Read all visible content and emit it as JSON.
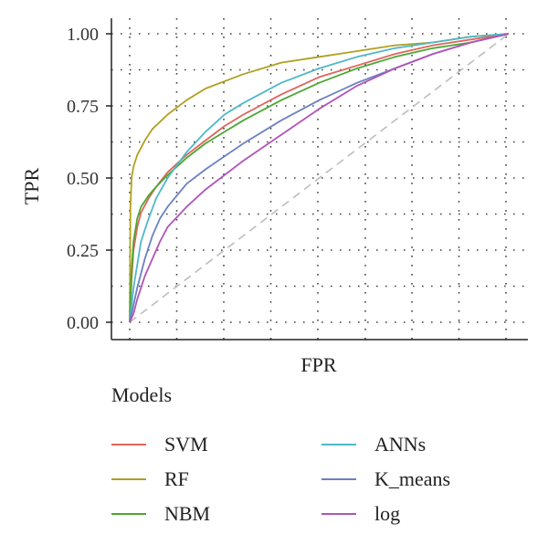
{
  "chart_data": {
    "type": "line",
    "xlabel": "FPR",
    "ylabel": "TPR",
    "xlim": [
      0,
      1
    ],
    "ylim": [
      0,
      1
    ],
    "y_ticks": [
      "0.00",
      "0.25",
      "0.50",
      "0.75",
      "1.00"
    ],
    "x_ticks": [],
    "grid": "dotted",
    "diagonal_reference": true,
    "legend": {
      "title": "Models",
      "position": "bottom"
    },
    "series": [
      {
        "name": "SVM",
        "color": "#e0645c",
        "x": [
          0,
          0.005,
          0.01,
          0.02,
          0.03,
          0.05,
          0.07,
          0.1,
          0.15,
          0.2,
          0.25,
          0.3,
          0.4,
          0.5,
          0.6,
          0.7,
          0.8,
          0.9,
          1.0
        ],
        "y": [
          0,
          0.15,
          0.25,
          0.33,
          0.38,
          0.43,
          0.47,
          0.52,
          0.58,
          0.63,
          0.68,
          0.72,
          0.79,
          0.85,
          0.89,
          0.93,
          0.96,
          0.98,
          1.0
        ]
      },
      {
        "name": "RF",
        "color": "#b0a020",
        "x": [
          0,
          0.002,
          0.005,
          0.01,
          0.02,
          0.04,
          0.06,
          0.1,
          0.15,
          0.2,
          0.3,
          0.4,
          0.5,
          0.6,
          0.7,
          0.8,
          0.9,
          1.0
        ],
        "y": [
          0,
          0.4,
          0.5,
          0.54,
          0.58,
          0.63,
          0.67,
          0.72,
          0.77,
          0.81,
          0.86,
          0.9,
          0.92,
          0.94,
          0.96,
          0.97,
          0.99,
          1.0
        ]
      },
      {
        "name": "NBM",
        "color": "#4aa832",
        "x": [
          0,
          0.005,
          0.01,
          0.02,
          0.03,
          0.05,
          0.07,
          0.1,
          0.15,
          0.2,
          0.25,
          0.3,
          0.4,
          0.5,
          0.6,
          0.7,
          0.8,
          0.9,
          1.0
        ],
        "y": [
          0,
          0.18,
          0.28,
          0.36,
          0.4,
          0.44,
          0.47,
          0.51,
          0.57,
          0.62,
          0.66,
          0.7,
          0.77,
          0.83,
          0.88,
          0.92,
          0.95,
          0.97,
          1.0
        ]
      },
      {
        "name": "ANNs",
        "color": "#4fb8c8",
        "x": [
          0,
          0.01,
          0.02,
          0.03,
          0.05,
          0.07,
          0.1,
          0.15,
          0.2,
          0.25,
          0.3,
          0.4,
          0.5,
          0.6,
          0.7,
          0.8,
          0.9,
          1.0
        ],
        "y": [
          0,
          0.12,
          0.2,
          0.28,
          0.36,
          0.43,
          0.5,
          0.59,
          0.66,
          0.72,
          0.76,
          0.83,
          0.88,
          0.92,
          0.95,
          0.97,
          0.99,
          1.0
        ]
      },
      {
        "name": "K_means",
        "color": "#6b80c0",
        "x": [
          0,
          0.01,
          0.02,
          0.04,
          0.06,
          0.08,
          0.1,
          0.15,
          0.2,
          0.3,
          0.4,
          0.5,
          0.6,
          0.7,
          0.8,
          0.9,
          1.0
        ],
        "y": [
          0,
          0.06,
          0.12,
          0.22,
          0.3,
          0.36,
          0.4,
          0.48,
          0.53,
          0.62,
          0.7,
          0.77,
          0.83,
          0.88,
          0.93,
          0.97,
          1.0
        ]
      },
      {
        "name": "log",
        "color": "#b054b8",
        "x": [
          0,
          0.01,
          0.02,
          0.04,
          0.06,
          0.08,
          0.1,
          0.15,
          0.2,
          0.3,
          0.4,
          0.5,
          0.6,
          0.7,
          0.8,
          0.9,
          1.0
        ],
        "y": [
          0,
          0.03,
          0.08,
          0.16,
          0.22,
          0.28,
          0.33,
          0.4,
          0.46,
          0.56,
          0.65,
          0.74,
          0.82,
          0.88,
          0.93,
          0.97,
          1.0
        ]
      }
    ]
  }
}
